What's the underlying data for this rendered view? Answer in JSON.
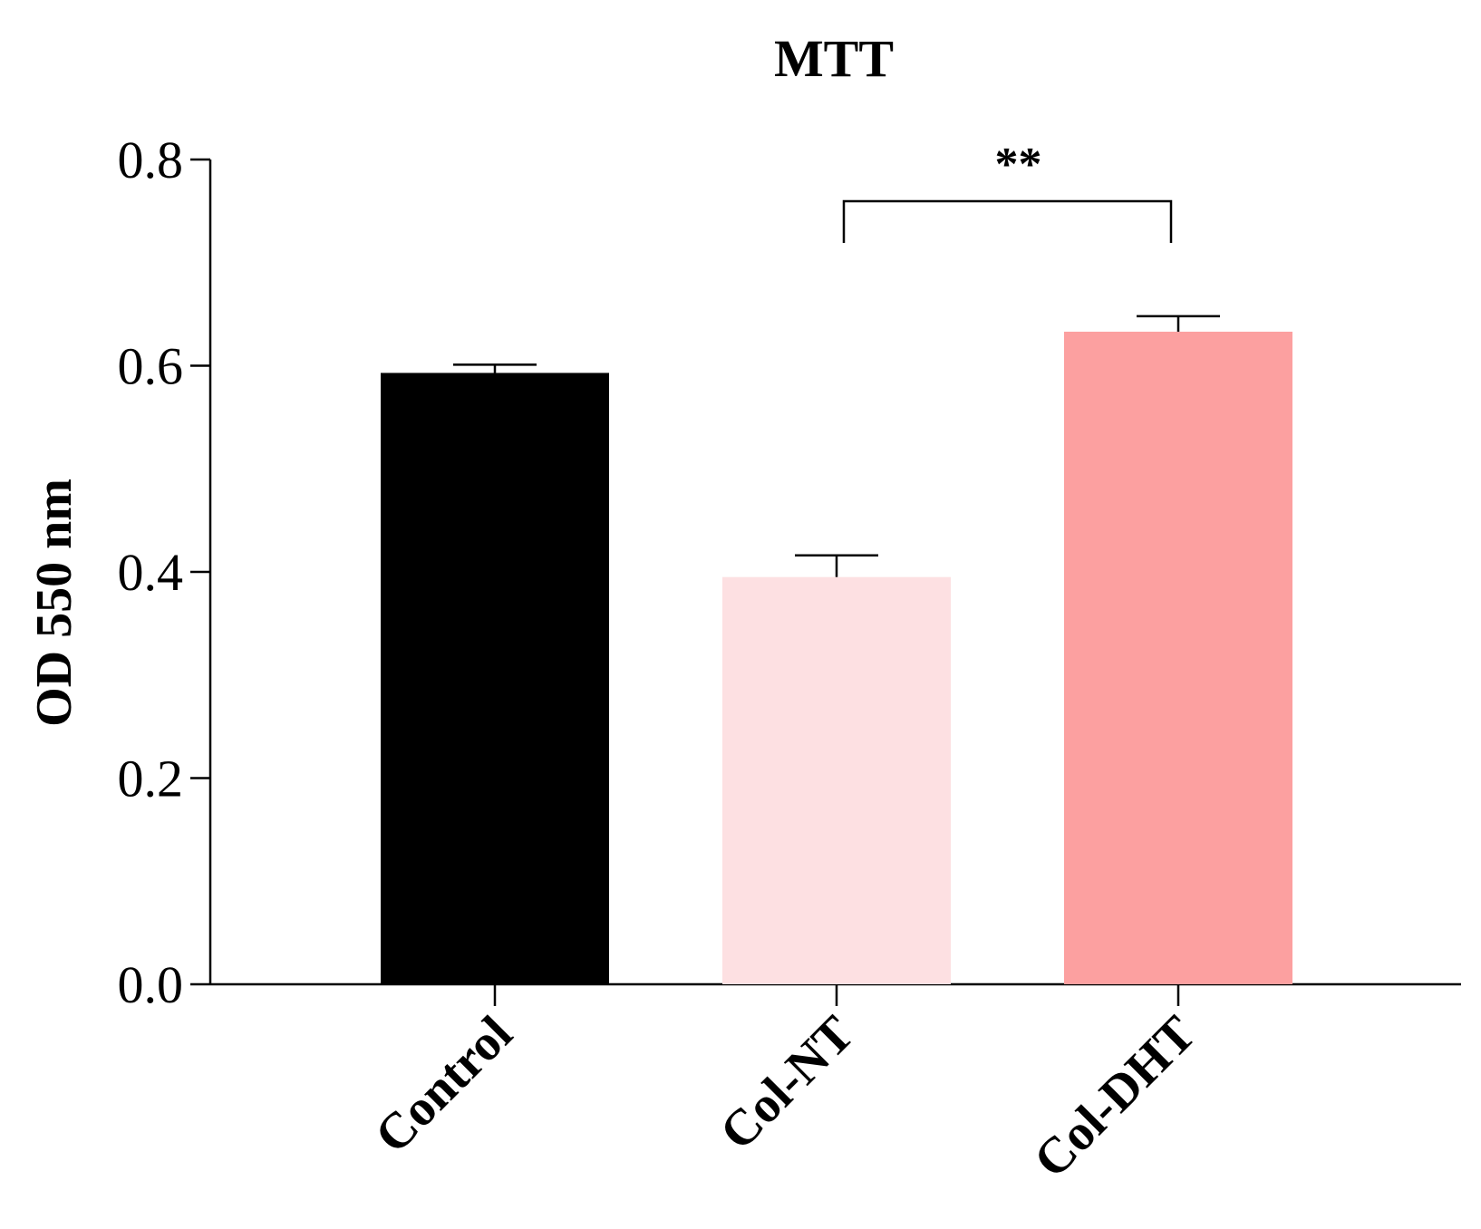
{
  "chart_data": {
    "type": "bar",
    "title": "MTT",
    "xlabel": "",
    "ylabel": "OD 550 nm",
    "ylim": [
      0,
      0.8
    ],
    "yticks": [
      "0.0",
      "0.2",
      "0.4",
      "0.6",
      "0.8"
    ],
    "categories": [
      "Control",
      "Col-NT",
      "Col-DHT"
    ],
    "values": [
      0.593,
      0.395,
      0.633
    ],
    "errors": [
      0.008,
      0.021,
      0.015
    ],
    "colors": [
      "#000000",
      "#fde0e2",
      "#fca0a0"
    ],
    "grid": false,
    "legend": "none",
    "annotations": [
      {
        "text": "**",
        "from": "Col-NT",
        "to": "Col-DHT"
      }
    ]
  }
}
